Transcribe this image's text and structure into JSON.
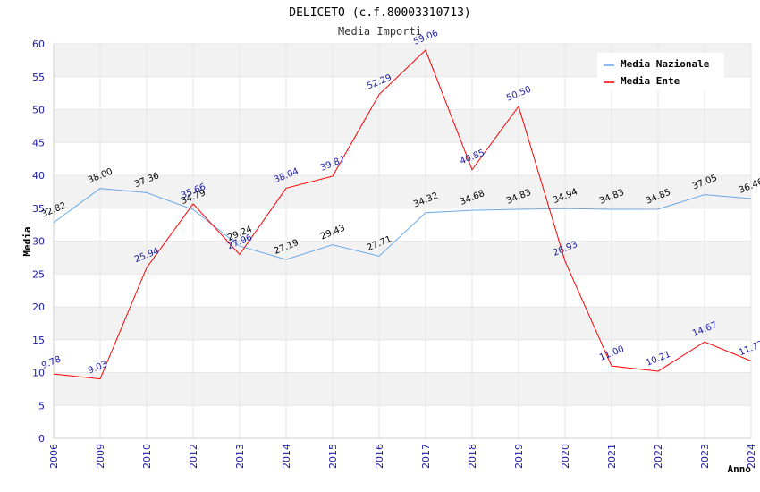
{
  "chart_data": {
    "type": "line",
    "title": "DELICETO (c.f.80003310713)",
    "subtitle": "Media Importi",
    "xlabel": "Anno",
    "ylabel": "Media",
    "ylim": [
      0,
      60
    ],
    "yticks": [
      "0",
      "5",
      "10",
      "15",
      "20",
      "25",
      "30",
      "35",
      "40",
      "45",
      "50",
      "55",
      "60"
    ],
    "categories": [
      "2006",
      "2009",
      "2010",
      "2012",
      "2013",
      "2014",
      "2015",
      "2016",
      "2017",
      "2018",
      "2019",
      "2020",
      "2021",
      "2022",
      "2023",
      "2024"
    ],
    "legend_position": "top-right",
    "series": [
      {
        "name": "Media Nazionale",
        "color": "#6aa8e8",
        "label_color": "#000000",
        "values": [
          32.82,
          38.0,
          37.36,
          34.79,
          29.24,
          27.19,
          29.43,
          27.71,
          34.32,
          34.68,
          34.83,
          34.94,
          34.83,
          34.85,
          37.05,
          36.46
        ],
        "labels": [
          "32.82",
          "38.00",
          "37.36",
          "34.79",
          "29.24",
          "27.19",
          "29.43",
          "27.71",
          "34.32",
          "34.68",
          "34.83",
          "34.94",
          "34.83",
          "34.85",
          "37.05",
          "36.46"
        ]
      },
      {
        "name": "Media Ente",
        "color": "#ff0000",
        "label_color": "#1a1aa6",
        "values": [
          9.78,
          9.03,
          25.94,
          35.66,
          27.96,
          38.04,
          39.87,
          52.29,
          59.06,
          40.85,
          50.5,
          26.93,
          11.0,
          10.21,
          14.67,
          11.77
        ],
        "labels": [
          "9.78",
          "9.03",
          "25.94",
          "35.66",
          "27.96",
          "38.04",
          "39.87",
          "52.29",
          "59.06",
          "40.85",
          "50.50",
          "26.93",
          "11.00",
          "10.21",
          "14.67",
          "11.77"
        ]
      }
    ]
  }
}
